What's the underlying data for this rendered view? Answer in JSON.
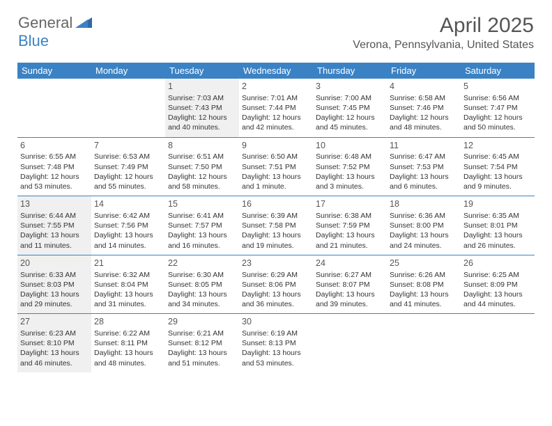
{
  "brand": {
    "part1": "General",
    "part2": "Blue",
    "text_color_general": "#666666",
    "text_color_blue": "#3b82c4"
  },
  "title": "April 2025",
  "location": "Verona, Pennsylvania, United States",
  "colors": {
    "header_bg": "#3b82c4",
    "header_text": "#ffffff",
    "body_text": "#333333",
    "shaded_bg": "#f0f0f0",
    "rule": "#3b82c4"
  },
  "weekdays": [
    "Sunday",
    "Monday",
    "Tuesday",
    "Wednesday",
    "Thursday",
    "Friday",
    "Saturday"
  ],
  "weeks": [
    [
      null,
      null,
      {
        "n": "1",
        "shaded": true,
        "sunrise": "Sunrise: 7:03 AM",
        "sunset": "Sunset: 7:43 PM",
        "day1": "Daylight: 12 hours",
        "day2": "and 40 minutes."
      },
      {
        "n": "2",
        "shaded": false,
        "sunrise": "Sunrise: 7:01 AM",
        "sunset": "Sunset: 7:44 PM",
        "day1": "Daylight: 12 hours",
        "day2": "and 42 minutes."
      },
      {
        "n": "3",
        "shaded": false,
        "sunrise": "Sunrise: 7:00 AM",
        "sunset": "Sunset: 7:45 PM",
        "day1": "Daylight: 12 hours",
        "day2": "and 45 minutes."
      },
      {
        "n": "4",
        "shaded": false,
        "sunrise": "Sunrise: 6:58 AM",
        "sunset": "Sunset: 7:46 PM",
        "day1": "Daylight: 12 hours",
        "day2": "and 48 minutes."
      },
      {
        "n": "5",
        "shaded": false,
        "sunrise": "Sunrise: 6:56 AM",
        "sunset": "Sunset: 7:47 PM",
        "day1": "Daylight: 12 hours",
        "day2": "and 50 minutes."
      }
    ],
    [
      {
        "n": "6",
        "shaded": false,
        "sunrise": "Sunrise: 6:55 AM",
        "sunset": "Sunset: 7:48 PM",
        "day1": "Daylight: 12 hours",
        "day2": "and 53 minutes."
      },
      {
        "n": "7",
        "shaded": false,
        "sunrise": "Sunrise: 6:53 AM",
        "sunset": "Sunset: 7:49 PM",
        "day1": "Daylight: 12 hours",
        "day2": "and 55 minutes."
      },
      {
        "n": "8",
        "shaded": false,
        "sunrise": "Sunrise: 6:51 AM",
        "sunset": "Sunset: 7:50 PM",
        "day1": "Daylight: 12 hours",
        "day2": "and 58 minutes."
      },
      {
        "n": "9",
        "shaded": false,
        "sunrise": "Sunrise: 6:50 AM",
        "sunset": "Sunset: 7:51 PM",
        "day1": "Daylight: 13 hours",
        "day2": "and 1 minute."
      },
      {
        "n": "10",
        "shaded": false,
        "sunrise": "Sunrise: 6:48 AM",
        "sunset": "Sunset: 7:52 PM",
        "day1": "Daylight: 13 hours",
        "day2": "and 3 minutes."
      },
      {
        "n": "11",
        "shaded": false,
        "sunrise": "Sunrise: 6:47 AM",
        "sunset": "Sunset: 7:53 PM",
        "day1": "Daylight: 13 hours",
        "day2": "and 6 minutes."
      },
      {
        "n": "12",
        "shaded": false,
        "sunrise": "Sunrise: 6:45 AM",
        "sunset": "Sunset: 7:54 PM",
        "day1": "Daylight: 13 hours",
        "day2": "and 9 minutes."
      }
    ],
    [
      {
        "n": "13",
        "shaded": true,
        "sunrise": "Sunrise: 6:44 AM",
        "sunset": "Sunset: 7:55 PM",
        "day1": "Daylight: 13 hours",
        "day2": "and 11 minutes."
      },
      {
        "n": "14",
        "shaded": false,
        "sunrise": "Sunrise: 6:42 AM",
        "sunset": "Sunset: 7:56 PM",
        "day1": "Daylight: 13 hours",
        "day2": "and 14 minutes."
      },
      {
        "n": "15",
        "shaded": false,
        "sunrise": "Sunrise: 6:41 AM",
        "sunset": "Sunset: 7:57 PM",
        "day1": "Daylight: 13 hours",
        "day2": "and 16 minutes."
      },
      {
        "n": "16",
        "shaded": false,
        "sunrise": "Sunrise: 6:39 AM",
        "sunset": "Sunset: 7:58 PM",
        "day1": "Daylight: 13 hours",
        "day2": "and 19 minutes."
      },
      {
        "n": "17",
        "shaded": false,
        "sunrise": "Sunrise: 6:38 AM",
        "sunset": "Sunset: 7:59 PM",
        "day1": "Daylight: 13 hours",
        "day2": "and 21 minutes."
      },
      {
        "n": "18",
        "shaded": false,
        "sunrise": "Sunrise: 6:36 AM",
        "sunset": "Sunset: 8:00 PM",
        "day1": "Daylight: 13 hours",
        "day2": "and 24 minutes."
      },
      {
        "n": "19",
        "shaded": false,
        "sunrise": "Sunrise: 6:35 AM",
        "sunset": "Sunset: 8:01 PM",
        "day1": "Daylight: 13 hours",
        "day2": "and 26 minutes."
      }
    ],
    [
      {
        "n": "20",
        "shaded": true,
        "sunrise": "Sunrise: 6:33 AM",
        "sunset": "Sunset: 8:03 PM",
        "day1": "Daylight: 13 hours",
        "day2": "and 29 minutes."
      },
      {
        "n": "21",
        "shaded": false,
        "sunrise": "Sunrise: 6:32 AM",
        "sunset": "Sunset: 8:04 PM",
        "day1": "Daylight: 13 hours",
        "day2": "and 31 minutes."
      },
      {
        "n": "22",
        "shaded": false,
        "sunrise": "Sunrise: 6:30 AM",
        "sunset": "Sunset: 8:05 PM",
        "day1": "Daylight: 13 hours",
        "day2": "and 34 minutes."
      },
      {
        "n": "23",
        "shaded": false,
        "sunrise": "Sunrise: 6:29 AM",
        "sunset": "Sunset: 8:06 PM",
        "day1": "Daylight: 13 hours",
        "day2": "and 36 minutes."
      },
      {
        "n": "24",
        "shaded": false,
        "sunrise": "Sunrise: 6:27 AM",
        "sunset": "Sunset: 8:07 PM",
        "day1": "Daylight: 13 hours",
        "day2": "and 39 minutes."
      },
      {
        "n": "25",
        "shaded": false,
        "sunrise": "Sunrise: 6:26 AM",
        "sunset": "Sunset: 8:08 PM",
        "day1": "Daylight: 13 hours",
        "day2": "and 41 minutes."
      },
      {
        "n": "26",
        "shaded": false,
        "sunrise": "Sunrise: 6:25 AM",
        "sunset": "Sunset: 8:09 PM",
        "day1": "Daylight: 13 hours",
        "day2": "and 44 minutes."
      }
    ],
    [
      {
        "n": "27",
        "shaded": true,
        "sunrise": "Sunrise: 6:23 AM",
        "sunset": "Sunset: 8:10 PM",
        "day1": "Daylight: 13 hours",
        "day2": "and 46 minutes."
      },
      {
        "n": "28",
        "shaded": false,
        "sunrise": "Sunrise: 6:22 AM",
        "sunset": "Sunset: 8:11 PM",
        "day1": "Daylight: 13 hours",
        "day2": "and 48 minutes."
      },
      {
        "n": "29",
        "shaded": false,
        "sunrise": "Sunrise: 6:21 AM",
        "sunset": "Sunset: 8:12 PM",
        "day1": "Daylight: 13 hours",
        "day2": "and 51 minutes."
      },
      {
        "n": "30",
        "shaded": false,
        "sunrise": "Sunrise: 6:19 AM",
        "sunset": "Sunset: 8:13 PM",
        "day1": "Daylight: 13 hours",
        "day2": "and 53 minutes."
      },
      null,
      null,
      null
    ]
  ]
}
